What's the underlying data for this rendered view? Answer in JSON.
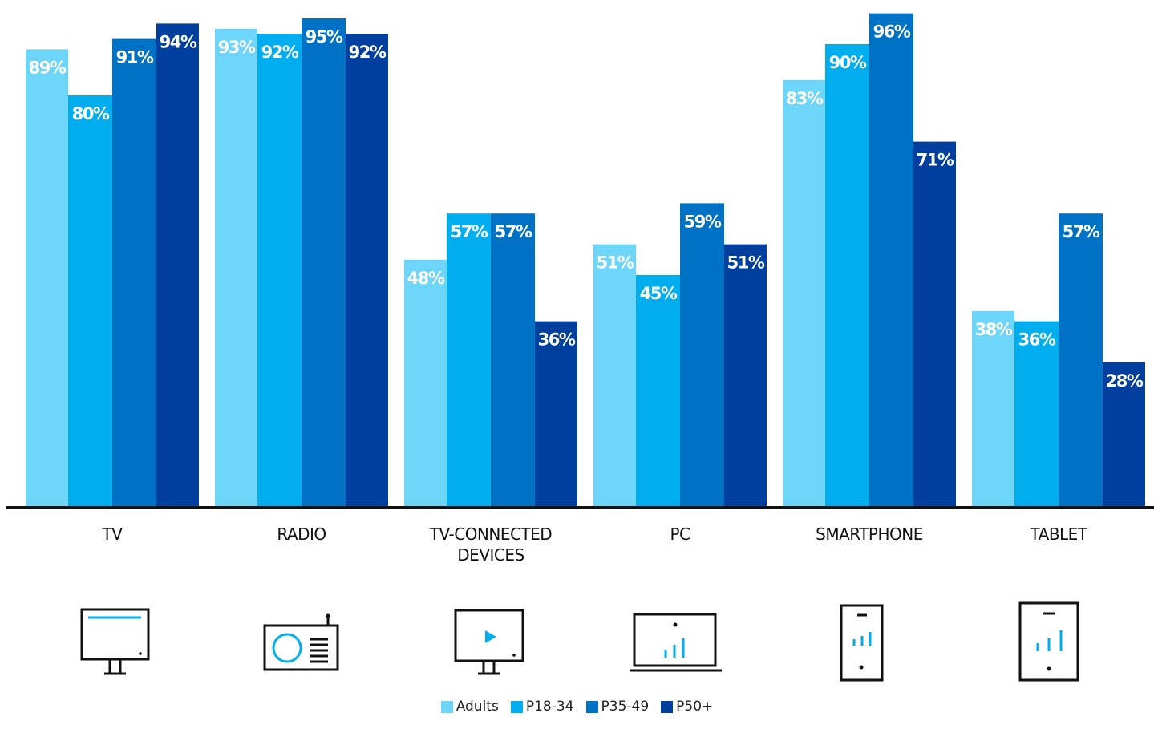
{
  "chart_data": {
    "type": "bar",
    "title": "",
    "xlabel": "",
    "ylabel": "",
    "ylim": [
      0,
      100
    ],
    "grid": false,
    "legend_position": "bottom-center",
    "value_suffix": "%",
    "categories": [
      "TV",
      "RADIO",
      "TV-CONNECTED DEVICES",
      "PC",
      "SMARTPHONE",
      "TABLET"
    ],
    "category_lines": [
      [
        "TV"
      ],
      [
        "RADIO"
      ],
      [
        "TV-CONNECTED",
        "DEVICES"
      ],
      [
        "PC"
      ],
      [
        "SMARTPHONE"
      ],
      [
        "TABLET"
      ]
    ],
    "series": [
      {
        "name": "Adults",
        "color": "#6dd5f7",
        "values": [
          89,
          93,
          48,
          51,
          83,
          38
        ]
      },
      {
        "name": "P18-34",
        "color": "#00aeef",
        "values": [
          80,
          92,
          57,
          45,
          90,
          36
        ]
      },
      {
        "name": "P35-49",
        "color": "#0072c6",
        "values": [
          91,
          95,
          57,
          59,
          96,
          57
        ]
      },
      {
        "name": "P50+",
        "color": "#003f9e",
        "values": [
          94,
          92,
          36,
          51,
          71,
          28
        ]
      }
    ]
  },
  "icons": [
    "tv-icon",
    "radio-icon",
    "tv-connected-device-icon",
    "laptop-icon",
    "smartphone-icon",
    "tablet-icon"
  ],
  "colors": {
    "axis": "#111111",
    "icon_stroke": "#111111",
    "icon_accent": "#00aeef",
    "label_text": "#ffffff"
  }
}
